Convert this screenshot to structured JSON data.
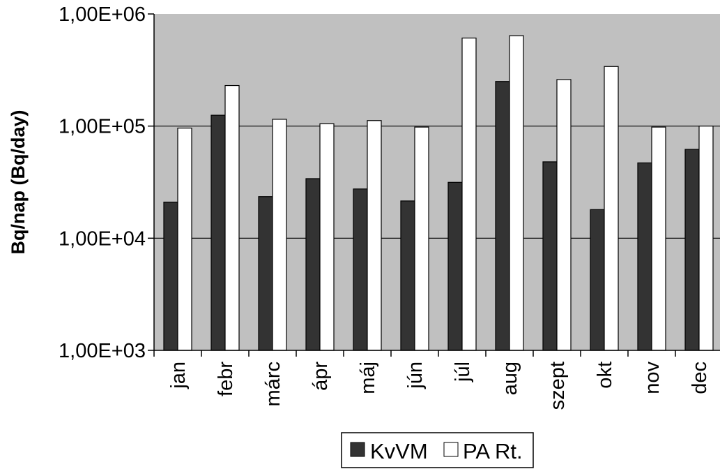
{
  "chart_data": {
    "type": "bar",
    "scale": "log",
    "title": "",
    "ylabel": "Bq/nap (Bq/day)",
    "xlabel": "",
    "ylim": [
      1000,
      1000000
    ],
    "y_ticks": [
      1000,
      10000,
      100000,
      1000000
    ],
    "y_tick_labels": [
      "1,00E+03",
      "1,00E+04",
      "1,00E+05",
      "1,00E+06"
    ],
    "categories": [
      "jan",
      "febr",
      "márc",
      "ápr",
      "máj",
      "jún",
      "júl",
      "aug",
      "szept",
      "okt",
      "nov",
      "dec"
    ],
    "series": [
      {
        "name": "KvVM",
        "color": "#333333",
        "values": [
          21000,
          125000,
          23500,
          34000,
          27500,
          21500,
          31500,
          250000,
          48000,
          18000,
          47000,
          62000
        ]
      },
      {
        "name": "PA Rt.",
        "color": "#ffffff",
        "values": [
          96000,
          230000,
          115000,
          105000,
          112000,
          98000,
          610000,
          640000,
          260000,
          340000,
          98000,
          100000
        ]
      }
    ],
    "plot_background": "#c0c0c0",
    "grid": true,
    "legend_position": "bottom"
  }
}
